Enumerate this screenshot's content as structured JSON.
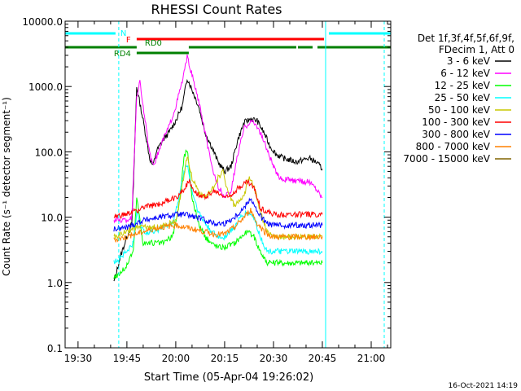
{
  "chart_data": {
    "type": "line",
    "title": "RHESSI Count Rates",
    "xlabel": "Start Time (05-Apr-04 19:26:02)",
    "ylabel": "Count Rate (s⁻¹ detector segment⁻¹)",
    "y_scale": "log",
    "ylim": [
      0.1,
      10000
    ],
    "xlim": [
      "19:26:02",
      "21:06:00"
    ],
    "x_ticks": [
      "19:30",
      "19:45",
      "20:00",
      "20:15",
      "20:30",
      "20:45",
      "21:00"
    ],
    "y_ticks": [
      "0.1",
      "1.0",
      "10.0",
      "100.0",
      "1000.0",
      "10000.0"
    ],
    "grid": false,
    "legend_position": "right",
    "legend_header": [
      "Det 1f,3f,4f,5f,6f,9f,",
      "FDecim 1, Att 0"
    ],
    "timestamp": "16-Oct-2021 14:19",
    "series": [
      {
        "name": "3 - 6 keV",
        "color": "#000000",
        "x": [
          "19:41:00",
          "19:43:00",
          "19:45:00",
          "19:46:30",
          "19:47:00",
          "19:48:00",
          "19:50:00",
          "19:52:00",
          "19:53:00",
          "19:54:00",
          "19:56:00",
          "19:58:00",
          "20:00:00",
          "20:02:00",
          "20:03:30",
          "20:05:00",
          "20:07:00",
          "20:09:00",
          "20:11:00",
          "20:13:00",
          "20:15:00",
          "20:17:00",
          "20:19:00",
          "20:21:00",
          "20:23:00",
          "20:25:00",
          "20:27:00",
          "20:29:00",
          "20:31:00",
          "20:33:00",
          "20:35:00",
          "20:37:00",
          "20:39:00",
          "20:41:00",
          "20:43:00",
          "20:45:00"
        ],
        "values": [
          1.0,
          2.5,
          5,
          8,
          30,
          1000,
          300,
          80,
          60,
          100,
          150,
          200,
          300,
          500,
          1350,
          900,
          500,
          200,
          120,
          70,
          50,
          60,
          150,
          280,
          320,
          300,
          200,
          120,
          90,
          80,
          75,
          70,
          75,
          80,
          70,
          55
        ]
      },
      {
        "name": "6 - 12 keV",
        "color": "#ff00ff",
        "x": [
          "19:41:00",
          "19:45:00",
          "19:46:30",
          "19:47:00",
          "19:48:00",
          "19:49:00",
          "19:50:00",
          "19:52:00",
          "19:53:00",
          "19:54:00",
          "19:56:00",
          "19:58:00",
          "20:00:00",
          "20:02:00",
          "20:03:30",
          "20:05:00",
          "20:07:00",
          "20:09:00",
          "20:11:00",
          "20:13:00",
          "20:15:00",
          "20:17:00",
          "20:19:00",
          "20:21:00",
          "20:23:00",
          "20:25:00",
          "20:27:00",
          "20:29:00",
          "20:31:00",
          "20:33:00",
          "20:35:00",
          "20:37:00",
          "20:39:00",
          "20:41:00",
          "20:43:00",
          "20:45:00"
        ],
        "values": [
          9,
          9,
          10,
          40,
          700,
          1200,
          500,
          90,
          60,
          80,
          150,
          250,
          500,
          1200,
          2800,
          1500,
          600,
          200,
          60,
          30,
          20,
          25,
          90,
          230,
          300,
          250,
          150,
          80,
          45,
          38,
          38,
          35,
          35,
          35,
          28,
          20
        ]
      },
      {
        "name": "12 - 25 keV",
        "color": "#00ff00",
        "x": [
          "19:41:00",
          "19:43:00",
          "19:45:00",
          "19:46:00",
          "19:47:00",
          "19:48:00",
          "19:50:00",
          "19:53:00",
          "19:56:00",
          "19:59:00",
          "20:01:00",
          "20:02:30",
          "20:03:30",
          "20:05:00",
          "20:07:00",
          "20:09:00",
          "20:11:00",
          "20:13:00",
          "20:15:00",
          "20:18:00",
          "20:20:00",
          "20:22:00",
          "20:24:00",
          "20:26:00",
          "20:28:00",
          "20:30:00",
          "20:35:00",
          "20:40:00",
          "20:45:00"
        ],
        "values": [
          1.2,
          1.4,
          1.8,
          2.5,
          3,
          20,
          4,
          4,
          4,
          5,
          15,
          80,
          110,
          20,
          8,
          5,
          4,
          3.5,
          3.5,
          4,
          5,
          6,
          5,
          3,
          2,
          2,
          2,
          2,
          2
        ]
      },
      {
        "name": "25 - 50 keV",
        "color": "#00ffff",
        "x": [
          "19:41:00",
          "19:43:00",
          "19:45:00",
          "19:47:00",
          "19:48:00",
          "19:50:00",
          "19:53:00",
          "19:56:00",
          "19:59:00",
          "20:01:00",
          "20:02:30",
          "20:03:30",
          "20:05:00",
          "20:07:00",
          "20:09:00",
          "20:11:00",
          "20:13:00",
          "20:15:00",
          "20:18:00",
          "20:20:00",
          "20:22:00",
          "20:24:00",
          "20:26:00",
          "20:28:00",
          "20:30:00",
          "20:35:00",
          "20:40:00",
          "20:45:00"
        ],
        "values": [
          2,
          2.5,
          3,
          4,
          12,
          6,
          6,
          7,
          8,
          20,
          50,
          65,
          25,
          12,
          8,
          6,
          5,
          5,
          7,
          10,
          12,
          10,
          5,
          3,
          3,
          3,
          3,
          3
        ]
      },
      {
        "name": "50 - 100 keV",
        "color": "#c8c800",
        "x": [
          "19:41:00",
          "19:45:00",
          "19:48:00",
          "19:50:00",
          "19:55:00",
          "20:00:00",
          "20:02:00",
          "20:03:30",
          "20:05:00",
          "20:07:00",
          "20:09:00",
          "20:11:00",
          "20:13:00",
          "20:14:30",
          "20:16:00",
          "20:18:00",
          "20:21:00",
          "20:22:00",
          "20:23:00",
          "20:24:00",
          "20:26:00",
          "20:28:00",
          "20:30:00",
          "20:35:00",
          "20:40:00",
          "20:45:00"
        ],
        "values": [
          5,
          6,
          7,
          7,
          7,
          9,
          30,
          90,
          40,
          25,
          20,
          25,
          40,
          50,
          25,
          15,
          20,
          35,
          40,
          30,
          12,
          6,
          5,
          5,
          5,
          5
        ]
      },
      {
        "name": "100 - 300 keV",
        "color": "#ff0000",
        "x": [
          "19:41:00",
          "19:45:00",
          "19:50:00",
          "19:55:00",
          "20:00:00",
          "20:02:00",
          "20:04:00",
          "20:06:00",
          "20:08:00",
          "20:10:00",
          "20:12:00",
          "20:14:00",
          "20:16:00",
          "20:18:00",
          "20:20:00",
          "20:22:00",
          "20:24:00",
          "20:26:00",
          "20:28:00",
          "20:30:00",
          "20:35:00",
          "20:40:00",
          "20:45:00"
        ],
        "values": [
          10,
          11,
          14,
          16,
          20,
          25,
          35,
          25,
          20,
          22,
          25,
          22,
          20,
          25,
          30,
          35,
          28,
          14,
          12,
          11,
          11,
          11,
          11
        ]
      },
      {
        "name": "300 - 800 keV",
        "color": "#0000ff",
        "x": [
          "19:41:00",
          "19:45:00",
          "19:50:00",
          "19:55:00",
          "20:00:00",
          "20:03:00",
          "20:06:00",
          "20:09:00",
          "20:12:00",
          "20:15:00",
          "20:18:00",
          "20:21:00",
          "20:23:00",
          "20:25:00",
          "20:28:00",
          "20:30:00",
          "20:35:00",
          "20:40:00",
          "20:45:00"
        ],
        "values": [
          6.5,
          7,
          9,
          10,
          11,
          11,
          10,
          9,
          8,
          8,
          10,
          14,
          20,
          12,
          8,
          7.5,
          7.5,
          7.5,
          7.5
        ]
      },
      {
        "name": "800 - 7000 keV",
        "color": "#ff8000",
        "x": [
          "19:41:00",
          "19:45:00",
          "19:50:00",
          "19:55:00",
          "20:00:00",
          "20:03:00",
          "20:06:00",
          "20:09:00",
          "20:12:00",
          "20:15:00",
          "20:18:00",
          "20:21:00",
          "20:23:00",
          "20:25:00",
          "20:28:00",
          "20:30:00",
          "20:35:00",
          "20:40:00",
          "20:45:00"
        ],
        "values": [
          4.5,
          5,
          6,
          7,
          7.5,
          7,
          6.5,
          6,
          5.5,
          5.5,
          7,
          10,
          13,
          8,
          5.5,
          5,
          5,
          5,
          5
        ]
      },
      {
        "name": "7000 - 15000 keV",
        "color": "#806400",
        "x": [],
        "values": []
      }
    ],
    "annotations": {
      "N": "N",
      "F": "F",
      "RD0": "RD0",
      "RD4": "RD4"
    },
    "flag_bars": {
      "night": {
        "label_key": "N",
        "color": "#00ffff",
        "segments": [
          [
            "19:26:02",
            "19:41:30"
          ],
          [
            "20:47:00",
            "21:06:00"
          ]
        ]
      },
      "flare": {
        "label_key": "F",
        "color": "#ff0000",
        "segments": [
          [
            "19:48:00",
            "20:45:30"
          ]
        ]
      },
      "rd0": {
        "label_key": "RD0",
        "color": "#008000",
        "segments": [
          [
            "19:26:02",
            "19:48:00"
          ],
          [
            "20:04:00",
            "20:37:00"
          ],
          [
            "20:37:30",
            "20:42:00"
          ],
          [
            "20:43:30",
            "21:06:00"
          ]
        ]
      },
      "rd4": {
        "label_key": "RD4",
        "color": "#008000",
        "segments": [
          [
            "19:48:00",
            "20:04:00"
          ]
        ]
      }
    },
    "vlines": [
      {
        "t": "19:26:02",
        "color": "#00ffff",
        "style": "solid"
      },
      {
        "t": "19:42:30",
        "color": "#00ffff",
        "style": "dashed"
      },
      {
        "t": "20:46:00",
        "color": "#00ffff",
        "style": "solid"
      },
      {
        "t": "21:04:00",
        "color": "#00ffff",
        "style": "dashed"
      }
    ]
  }
}
